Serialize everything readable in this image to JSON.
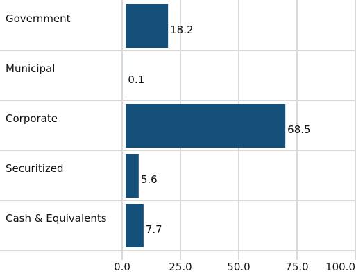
{
  "chart_data": {
    "type": "bar",
    "orientation": "horizontal",
    "title": "",
    "xlabel": "",
    "ylabel": "",
    "categories": [
      "Government",
      "Municipal",
      "Corporate",
      "Securitized",
      "Cash & Equivalents"
    ],
    "values": [
      18.2,
      0.1,
      68.5,
      5.6,
      7.7
    ],
    "value_labels": [
      "18.2",
      "0.1",
      "68.5",
      "5.6",
      "7.7"
    ],
    "xlim": [
      0,
      100
    ],
    "x_ticks": [
      0,
      25,
      50,
      75,
      100
    ],
    "x_tick_labels": [
      "0.0",
      "25.0",
      "50.0",
      "75.0",
      "100.0"
    ],
    "grid": true,
    "legend": "none",
    "bar_color": "#14507a",
    "grid_color": "#d9d9d9"
  }
}
